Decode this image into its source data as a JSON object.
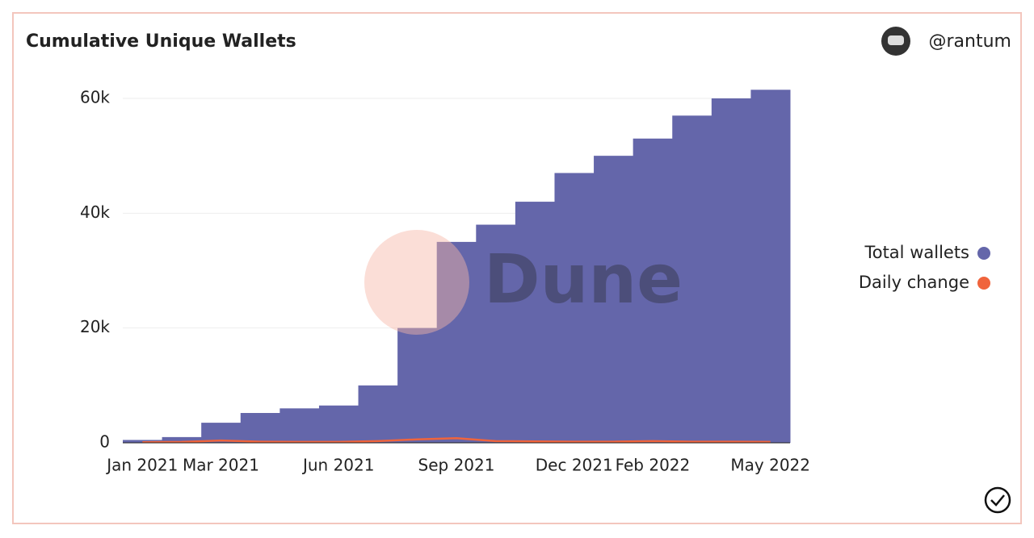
{
  "chart_data": {
    "type": "bar",
    "title": "Cumulative Unique Wallets",
    "author": "@rantum",
    "watermark": "Dune",
    "categories": [
      "Jan 2021",
      null,
      "Mar 2021",
      null,
      null,
      "Jun 2021",
      null,
      null,
      "Sep 2021",
      null,
      null,
      "Dec 2021",
      null,
      "Feb 2022",
      null,
      null,
      "May 2022"
    ],
    "series": [
      {
        "name": "Total wallets",
        "color": "#6466aa",
        "values": [
          500,
          1000,
          3500,
          5200,
          6000,
          6500,
          10000,
          20000,
          35000,
          38000,
          42000,
          47000,
          50000,
          53000,
          57000,
          60000,
          61500
        ]
      },
      {
        "name": "Daily change",
        "color": "#f0643c",
        "values": [
          100,
          150,
          400,
          200,
          150,
          150,
          300,
          600,
          800,
          300,
          250,
          200,
          200,
          300,
          200,
          200,
          150
        ]
      }
    ],
    "ylim": [
      0,
      64000
    ],
    "yticks": [
      0,
      {
        "value": 20000,
        "label": "20k"
      },
      {
        "value": 40000,
        "label": "40k"
      },
      {
        "value": 60000,
        "label": "60k"
      }
    ],
    "grid": true,
    "legend": "right"
  }
}
